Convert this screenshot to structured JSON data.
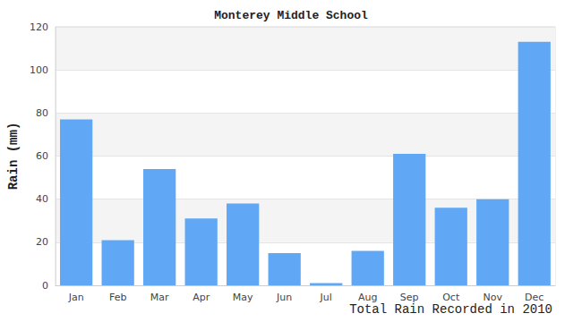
{
  "chart_data": {
    "type": "bar",
    "title": "Monterey Middle School",
    "x_label": "Total Rain Recorded in 2010",
    "y_label": "Rain (mm)",
    "categories": [
      "Jan",
      "Feb",
      "Mar",
      "Apr",
      "May",
      "Jun",
      "Jul",
      "Aug",
      "Sep",
      "Oct",
      "Nov",
      "Dec"
    ],
    "values": [
      77,
      21,
      54,
      31,
      38,
      15,
      1,
      16,
      61,
      36,
      40,
      113
    ],
    "color": "#60a8f5",
    "ylim": [
      0,
      120
    ],
    "yticks": [
      0,
      20,
      40,
      60,
      80,
      100,
      120
    ],
    "grid": true
  }
}
